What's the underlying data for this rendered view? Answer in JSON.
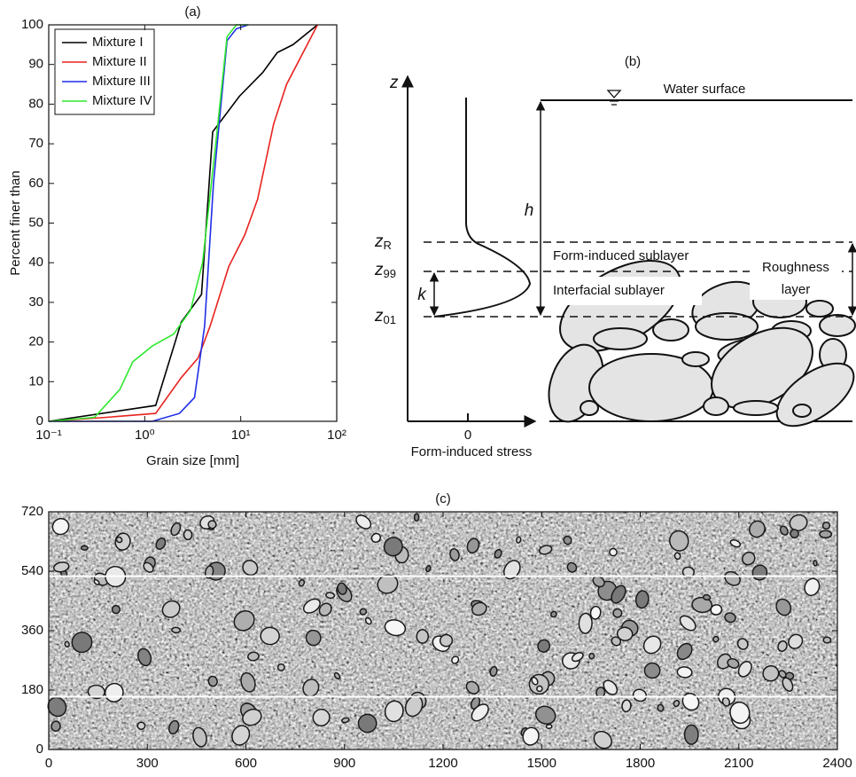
{
  "chart_data": [
    {
      "type": "line",
      "title": "(a)",
      "xlabel": "Grain size [mm]",
      "ylabel": "Percent finer than",
      "xscale": "log",
      "xlim": [
        0.1,
        100
      ],
      "ylim": [
        0,
        100
      ],
      "xticks": [
        {
          "value": 0.1,
          "label": "10⁻¹"
        },
        {
          "value": 1,
          "label": "10⁰"
        },
        {
          "value": 10,
          "label": "10¹"
        },
        {
          "value": 100,
          "label": "10²"
        }
      ],
      "yticks": [
        0,
        10,
        20,
        30,
        40,
        50,
        60,
        70,
        80,
        90,
        100
      ],
      "legend": "upper-left",
      "series": [
        {
          "name": "Mixture I",
          "color": "#000000",
          "x": [
            0.1,
            1.3,
            2.4,
            3.9,
            5.1,
            9.7,
            17,
            24,
            35,
            63
          ],
          "values": [
            0,
            4,
            25,
            32,
            73,
            82,
            88,
            93,
            95,
            100
          ]
        },
        {
          "name": "Mixture II",
          "color": "#e8231f",
          "x": [
            0.1,
            0.4,
            1.3,
            2.4,
            3.6,
            4.8,
            7.5,
            11,
            15,
            22,
            30,
            63
          ],
          "values": [
            0,
            1,
            2,
            11,
            16,
            24,
            39,
            47,
            56,
            75,
            85,
            100
          ]
        },
        {
          "name": "Mixture III",
          "color": "#1f2ee8",
          "x": [
            0.1,
            1.2,
            2.3,
            3.3,
            4.2,
            5.2,
            7.2,
            9,
            12
          ],
          "values": [
            0,
            0,
            2,
            6,
            24,
            60,
            96,
            99,
            100
          ]
        },
        {
          "name": "Mixture IV",
          "color": "#2ee82e",
          "x": [
            0.1,
            0.3,
            0.55,
            0.75,
            1.2,
            2.0,
            3.0,
            4.0,
            5.5,
            7.2,
            9,
            12
          ],
          "values": [
            0,
            1,
            8,
            15,
            19,
            22,
            28,
            40,
            70,
            97,
            100,
            100
          ]
        }
      ]
    },
    {
      "type": "image",
      "title": "(c)",
      "xlim": [
        0,
        2400
      ],
      "ylim": [
        0,
        720
      ],
      "xticks": [
        0,
        300,
        600,
        900,
        1200,
        1500,
        1800,
        2100,
        2400
      ],
      "yticks": [
        0,
        180,
        360,
        540,
        720
      ],
      "hlines": [
        160,
        525
      ]
    }
  ],
  "diagram": {
    "title": "(b)",
    "z_axis": "z",
    "water_surface": "Water surface",
    "h": "h",
    "z_R": {
      "base": "z",
      "sub": "R"
    },
    "z_99": {
      "base": "z",
      "sub": "99"
    },
    "z_01": {
      "base": "z",
      "sub": "01"
    },
    "k": "k",
    "form_induced_sublayer": "Form-induced sublayer",
    "interfacial_sublayer": "Interfacial sublayer",
    "roughness_layer": [
      "Roughness",
      "layer"
    ],
    "zero": "0",
    "x_axis": "Form-induced stress"
  }
}
